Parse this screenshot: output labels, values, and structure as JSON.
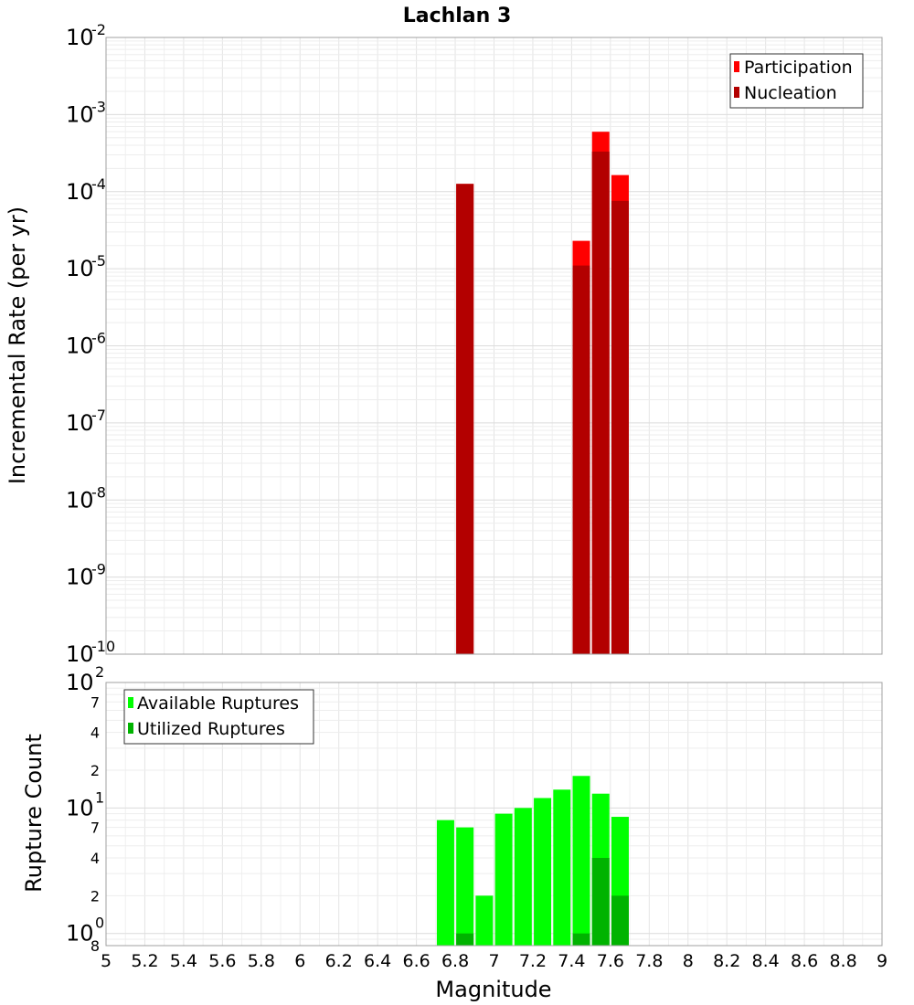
{
  "chart_data": [
    {
      "type": "bar",
      "title": "Lachlan 3",
      "ylabel": "Incremental Rate (per yr)",
      "yscale": "log",
      "ylim": [
        1e-10,
        0.01
      ],
      "xlim": [
        5,
        9
      ],
      "y_tick_labels": [
        {
          "base": "10",
          "exp": "-2"
        },
        {
          "base": "10",
          "exp": "-3"
        },
        {
          "base": "10",
          "exp": "-4"
        },
        {
          "base": "10",
          "exp": "-5"
        },
        {
          "base": "10",
          "exp": "-6"
        },
        {
          "base": "10",
          "exp": "-7"
        },
        {
          "base": "10",
          "exp": "-8"
        },
        {
          "base": "10",
          "exp": "-9"
        },
        {
          "base": "10",
          "exp": "-10"
        }
      ],
      "legend": {
        "position": "top-right",
        "entries": [
          "Participation",
          "Nucleation"
        ]
      },
      "series": [
        {
          "name": "Participation",
          "color": "#ff0000",
          "points": [
            {
              "x": 6.85,
              "y": 0.000126
            },
            {
              "x": 7.45,
              "y": 2.3e-05
            },
            {
              "x": 7.55,
              "y": 0.000598
            },
            {
              "x": 7.65,
              "y": 0.000164
            }
          ]
        },
        {
          "name": "Nucleation",
          "color": "#b30000",
          "points": [
            {
              "x": 6.85,
              "y": 0.000126
            },
            {
              "x": 7.45,
              "y": 1.1e-05
            },
            {
              "x": 7.55,
              "y": 0.000331
            },
            {
              "x": 7.65,
              "y": 7.6e-05
            }
          ]
        }
      ],
      "grid": true
    },
    {
      "type": "bar",
      "xlabel": "Magnitude",
      "ylabel": "Rupture Count",
      "yscale": "log",
      "ylim": [
        0.8,
        100
      ],
      "xlim": [
        5,
        9
      ],
      "x_ticks": [
        "5",
        "5.2",
        "5.4",
        "5.6",
        "5.8",
        "6",
        "6.2",
        "6.4",
        "6.6",
        "6.8",
        "7",
        "7.2",
        "7.4",
        "7.6",
        "7.8",
        "8",
        "8.2",
        "8.4",
        "8.6",
        "8.8",
        "9"
      ],
      "y_tick_labels": [
        {
          "value": 100,
          "base": "10",
          "exp": "2"
        },
        {
          "value": 70,
          "label": "7"
        },
        {
          "value": 40,
          "label": "4"
        },
        {
          "value": 20,
          "label": "2"
        },
        {
          "value": 10,
          "base": "10",
          "exp": "1"
        },
        {
          "value": 7,
          "label": "7"
        },
        {
          "value": 4,
          "label": "4"
        },
        {
          "value": 2,
          "label": "2"
        },
        {
          "value": 1,
          "base": "10",
          "exp": "0"
        },
        {
          "value": 0.8,
          "label": "8"
        }
      ],
      "legend": {
        "position": "top-left",
        "entries": [
          "Available Ruptures",
          "Utilized Ruptures"
        ]
      },
      "series": [
        {
          "name": "Available Ruptures",
          "color": "#00ff00",
          "points": [
            {
              "x": 6.75,
              "y": 8
            },
            {
              "x": 6.85,
              "y": 7
            },
            {
              "x": 6.95,
              "y": 2
            },
            {
              "x": 7.05,
              "y": 9
            },
            {
              "x": 7.15,
              "y": 10
            },
            {
              "x": 7.25,
              "y": 12
            },
            {
              "x": 7.35,
              "y": 14
            },
            {
              "x": 7.45,
              "y": 18
            },
            {
              "x": 7.55,
              "y": 13
            },
            {
              "x": 7.65,
              "y": 8.5
            }
          ]
        },
        {
          "name": "Utilized Ruptures",
          "color": "#00b300",
          "points": [
            {
              "x": 6.85,
              "y": 1
            },
            {
              "x": 7.45,
              "y": 1
            },
            {
              "x": 7.55,
              "y": 4
            },
            {
              "x": 7.65,
              "y": 2
            }
          ]
        }
      ],
      "grid": true
    }
  ]
}
